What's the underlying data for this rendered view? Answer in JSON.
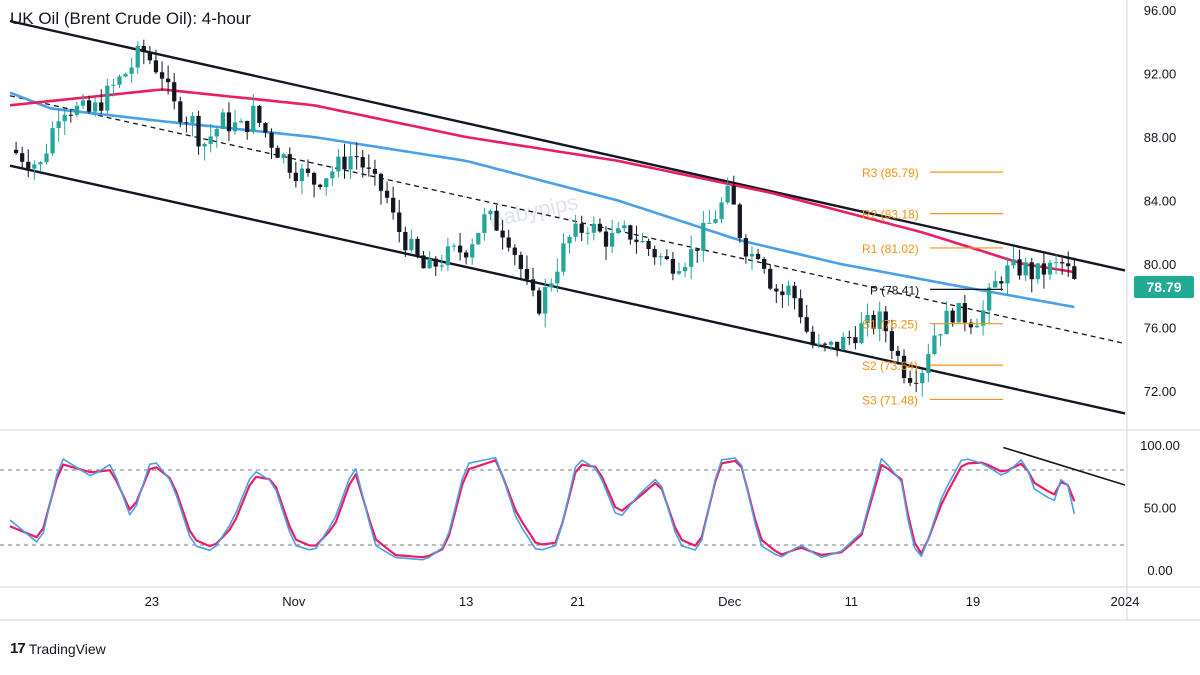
{
  "title": "UK Oil (Brent Crude Oil): 4-hour",
  "brand": {
    "logo": "17",
    "name": "TradingView"
  },
  "watermark": "Babypips",
  "current_price": {
    "label": "78.79",
    "color": "#22ab94"
  },
  "colors": {
    "up": "#26a69a",
    "down": "#131722",
    "ma_fast": "#e91e63",
    "ma_slow": "#4a9fe8",
    "pivot": "#f7931a",
    "stoch_k": "#4a9fe8",
    "stoch_d": "#e91e63"
  },
  "chart_data": [
    {
      "type": "candlestick",
      "title": "UK Oil (Brent Crude Oil): 4-hour",
      "y_ticks": [
        "96.00",
        "92.00",
        "88.00",
        "84.00",
        "80.00",
        "76.00",
        "72.00"
      ],
      "ylim": [
        70.5,
        96
      ],
      "x_ticks": [
        {
          "label": "23",
          "t": 0.14
        },
        {
          "label": "Nov",
          "t": 0.28
        },
        {
          "label": "13",
          "t": 0.45
        },
        {
          "label": "21",
          "t": 0.56
        },
        {
          "label": "Dec",
          "t": 0.71
        },
        {
          "label": "11",
          "t": 0.83
        },
        {
          "label": "19",
          "t": 0.95
        },
        {
          "label": "2024",
          "t": 1.1
        }
      ],
      "price_path": [
        [
          0,
          87.2
        ],
        [
          0.03,
          86.2
        ],
        [
          0.05,
          90.0
        ],
        [
          0.08,
          89.5
        ],
        [
          0.1,
          91.0
        ],
        [
          0.12,
          92.5
        ],
        [
          0.13,
          93.5
        ],
        [
          0.15,
          92.0
        ],
        [
          0.16,
          90.0
        ],
        [
          0.18,
          89.0
        ],
        [
          0.19,
          87.5
        ],
        [
          0.21,
          89.0
        ],
        [
          0.23,
          88.5
        ],
        [
          0.24,
          89.5
        ],
        [
          0.26,
          87.5
        ],
        [
          0.28,
          86.0
        ],
        [
          0.3,
          85.2
        ],
        [
          0.32,
          86.0
        ],
        [
          0.34,
          87.0
        ],
        [
          0.36,
          85.0
        ],
        [
          0.37,
          84.5
        ],
        [
          0.38,
          82.5
        ],
        [
          0.39,
          81.5
        ],
        [
          0.4,
          80.5
        ],
        [
          0.41,
          79.5
        ],
        [
          0.43,
          80.5
        ],
        [
          0.45,
          81.0
        ],
        [
          0.47,
          83.0
        ],
        [
          0.49,
          82.0
        ],
        [
          0.5,
          80.5
        ],
        [
          0.51,
          78.5
        ],
        [
          0.52,
          77.2
        ],
        [
          0.53,
          78.5
        ],
        [
          0.55,
          81.5
        ],
        [
          0.57,
          82.5
        ],
        [
          0.59,
          81.5
        ],
        [
          0.61,
          82.0
        ],
        [
          0.63,
          81.0
        ],
        [
          0.65,
          80.0
        ],
        [
          0.67,
          80.5
        ],
        [
          0.69,
          82.5
        ],
        [
          0.7,
          83.5
        ],
        [
          0.71,
          84.5
        ],
        [
          0.72,
          82.0
        ],
        [
          0.73,
          80.5
        ],
        [
          0.74,
          81.0
        ],
        [
          0.75,
          79.0
        ],
        [
          0.76,
          78.0
        ],
        [
          0.77,
          78.5
        ],
        [
          0.78,
          77.0
        ],
        [
          0.79,
          75.0
        ],
        [
          0.8,
          74.5
        ],
        [
          0.82,
          75.0
        ],
        [
          0.84,
          76.0
        ],
        [
          0.86,
          76.5
        ],
        [
          0.87,
          75.0
        ],
        [
          0.88,
          73.5
        ],
        [
          0.89,
          73.0
        ],
        [
          0.9,
          73.5
        ],
        [
          0.91,
          75.5
        ],
        [
          0.93,
          77.0
        ],
        [
          0.95,
          76.5
        ],
        [
          0.96,
          77.0
        ],
        [
          0.97,
          78.5
        ],
        [
          0.98,
          79.5
        ],
        [
          1.0,
          79.8
        ],
        [
          1.01,
          79.3
        ],
        [
          1.02,
          79.6
        ],
        [
          1.04,
          80.0
        ],
        [
          1.05,
          78.8
        ]
      ],
      "ma_fast": [
        [
          0,
          90.0
        ],
        [
          0.15,
          91.0
        ],
        [
          0.3,
          90.0
        ],
        [
          0.45,
          88.0
        ],
        [
          0.6,
          86.5
        ],
        [
          0.75,
          84.5
        ],
        [
          0.9,
          82.0
        ],
        [
          1.0,
          80.0
        ],
        [
          1.05,
          79.5
        ]
      ],
      "ma_slow": [
        [
          0,
          90.8
        ],
        [
          0.04,
          89.8
        ],
        [
          0.15,
          89.0
        ],
        [
          0.3,
          88.0
        ],
        [
          0.45,
          86.5
        ],
        [
          0.6,
          84.0
        ],
        [
          0.72,
          81.5
        ],
        [
          0.82,
          80.0
        ],
        [
          0.92,
          78.8
        ],
        [
          1.05,
          77.3
        ]
      ],
      "channel_upper": [
        [
          0,
          95.3
        ],
        [
          1.1,
          79.6
        ]
      ],
      "channel_lower": [
        [
          0,
          86.2
        ],
        [
          1.1,
          70.6
        ]
      ],
      "channel_mid": [
        [
          0,
          90.6
        ],
        [
          1.1,
          75.0
        ]
      ],
      "pivots": [
        {
          "label": "R3 (85.79)",
          "value": 85.79
        },
        {
          "label": "R2 (83.18)",
          "value": 83.18
        },
        {
          "label": "R1 (81.02)",
          "value": 81.02
        },
        {
          "label": "P (78.41)",
          "value": 78.41
        },
        {
          "label": "S1 (76.25)",
          "value": 76.25
        },
        {
          "label": "S2 (73.64)",
          "value": 73.64
        },
        {
          "label": "S3 (71.48)",
          "value": 71.48
        }
      ]
    },
    {
      "type": "line",
      "name": "stochastic",
      "y_ticks": [
        "100.00",
        "50.00",
        "0.00"
      ],
      "ylim": [
        -8,
        108
      ],
      "levels": [
        80,
        20
      ],
      "k_path": [
        [
          0,
          40
        ],
        [
          0.03,
          20
        ],
        [
          0.05,
          90
        ],
        [
          0.08,
          75
        ],
        [
          0.1,
          85
        ],
        [
          0.12,
          40
        ],
        [
          0.14,
          90
        ],
        [
          0.16,
          70
        ],
        [
          0.18,
          20
        ],
        [
          0.2,
          15
        ],
        [
          0.22,
          40
        ],
        [
          0.24,
          80
        ],
        [
          0.26,
          70
        ],
        [
          0.28,
          20
        ],
        [
          0.3,
          15
        ],
        [
          0.32,
          40
        ],
        [
          0.34,
          85
        ],
        [
          0.36,
          20
        ],
        [
          0.38,
          10
        ],
        [
          0.41,
          8
        ],
        [
          0.43,
          20
        ],
        [
          0.45,
          85
        ],
        [
          0.48,
          90
        ],
        [
          0.5,
          40
        ],
        [
          0.52,
          15
        ],
        [
          0.54,
          20
        ],
        [
          0.56,
          90
        ],
        [
          0.58,
          80
        ],
        [
          0.6,
          40
        ],
        [
          0.62,
          60
        ],
        [
          0.64,
          75
        ],
        [
          0.66,
          20
        ],
        [
          0.68,
          15
        ],
        [
          0.7,
          88
        ],
        [
          0.72,
          90
        ],
        [
          0.74,
          20
        ],
        [
          0.76,
          10
        ],
        [
          0.78,
          20
        ],
        [
          0.8,
          10
        ],
        [
          0.82,
          15
        ],
        [
          0.84,
          30
        ],
        [
          0.86,
          90
        ],
        [
          0.88,
          70
        ],
        [
          0.89,
          20
        ],
        [
          0.9,
          10
        ],
        [
          0.92,
          60
        ],
        [
          0.94,
          90
        ],
        [
          0.96,
          85
        ],
        [
          0.98,
          75
        ],
        [
          1.0,
          90
        ],
        [
          1.01,
          65
        ],
        [
          1.03,
          55
        ],
        [
          1.04,
          80
        ],
        [
          1.05,
          45
        ]
      ],
      "d_path": [
        [
          0,
          35
        ],
        [
          0.03,
          25
        ],
        [
          0.05,
          85
        ],
        [
          0.08,
          78
        ],
        [
          0.1,
          80
        ],
        [
          0.12,
          45
        ],
        [
          0.14,
          85
        ],
        [
          0.16,
          72
        ],
        [
          0.18,
          25
        ],
        [
          0.2,
          18
        ],
        [
          0.22,
          35
        ],
        [
          0.24,
          75
        ],
        [
          0.26,
          72
        ],
        [
          0.28,
          25
        ],
        [
          0.3,
          18
        ],
        [
          0.32,
          35
        ],
        [
          0.34,
          80
        ],
        [
          0.36,
          25
        ],
        [
          0.38,
          12
        ],
        [
          0.41,
          10
        ],
        [
          0.43,
          18
        ],
        [
          0.45,
          80
        ],
        [
          0.48,
          88
        ],
        [
          0.5,
          45
        ],
        [
          0.52,
          20
        ],
        [
          0.54,
          22
        ],
        [
          0.56,
          85
        ],
        [
          0.58,
          82
        ],
        [
          0.6,
          45
        ],
        [
          0.62,
          58
        ],
        [
          0.64,
          72
        ],
        [
          0.66,
          25
        ],
        [
          0.68,
          18
        ],
        [
          0.7,
          85
        ],
        [
          0.72,
          88
        ],
        [
          0.74,
          25
        ],
        [
          0.76,
          12
        ],
        [
          0.78,
          18
        ],
        [
          0.8,
          12
        ],
        [
          0.82,
          14
        ],
        [
          0.84,
          28
        ],
        [
          0.86,
          85
        ],
        [
          0.88,
          72
        ],
        [
          0.89,
          25
        ],
        [
          0.9,
          12
        ],
        [
          0.92,
          55
        ],
        [
          0.94,
          85
        ],
        [
          0.96,
          86
        ],
        [
          0.98,
          78
        ],
        [
          1.0,
          86
        ],
        [
          1.01,
          70
        ],
        [
          1.03,
          60
        ],
        [
          1.04,
          75
        ],
        [
          1.05,
          55
        ]
      ],
      "trendline": [
        [
          0.98,
          98
        ],
        [
          1.1,
          68
        ]
      ]
    }
  ]
}
